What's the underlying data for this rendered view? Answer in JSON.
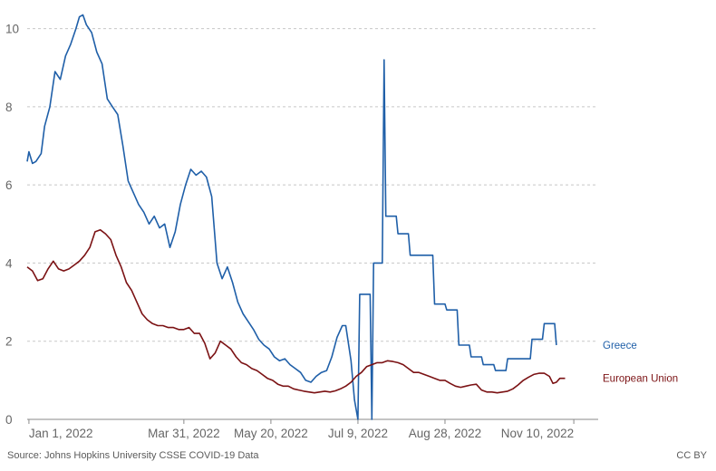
{
  "chart_data": {
    "type": "line",
    "title": "",
    "xlabel": "",
    "ylabel": "",
    "ylim": [
      0,
      10.5
    ],
    "y_ticks": [
      "0",
      "2",
      "4",
      "6",
      "8",
      "10"
    ],
    "x_ticks": [
      "Jan 1, 2022",
      "Mar 31, 2022",
      "May 20, 2022",
      "Jul 9, 2022",
      "Aug 28, 2022",
      "Nov 10, 2022"
    ],
    "x_tick_dates": [
      "2022-01-01",
      "2022-03-31",
      "2022-05-20",
      "2022-07-09",
      "2022-08-28",
      "2022-11-10"
    ],
    "xlim": [
      "2021-12-31",
      "2022-11-24"
    ],
    "grid": "horizontal dashed",
    "legend": "inline labels at line ends",
    "series": [
      {
        "name": "Greece",
        "color": "#1f5fa8",
        "points": [
          [
            "2021-12-31",
            6.6
          ],
          [
            "2022-01-01",
            6.85
          ],
          [
            "2022-01-03",
            6.55
          ],
          [
            "2022-01-05",
            6.6
          ],
          [
            "2022-01-08",
            6.8
          ],
          [
            "2022-01-10",
            7.5
          ],
          [
            "2022-01-13",
            8.0
          ],
          [
            "2022-01-16",
            8.9
          ],
          [
            "2022-01-19",
            8.7
          ],
          [
            "2022-01-22",
            9.3
          ],
          [
            "2022-01-25",
            9.6
          ],
          [
            "2022-01-28",
            10.0
          ],
          [
            "2022-01-30",
            10.3
          ],
          [
            "2022-02-01",
            10.35
          ],
          [
            "2022-02-03",
            10.1
          ],
          [
            "2022-02-06",
            9.9
          ],
          [
            "2022-02-09",
            9.4
          ],
          [
            "2022-02-12",
            9.1
          ],
          [
            "2022-02-15",
            8.2
          ],
          [
            "2022-02-18",
            8.0
          ],
          [
            "2022-02-21",
            7.8
          ],
          [
            "2022-02-24",
            7.0
          ],
          [
            "2022-02-27",
            6.1
          ],
          [
            "2022-03-02",
            5.8
          ],
          [
            "2022-03-05",
            5.5
          ],
          [
            "2022-03-08",
            5.3
          ],
          [
            "2022-03-11",
            5.0
          ],
          [
            "2022-03-14",
            5.2
          ],
          [
            "2022-03-17",
            4.9
          ],
          [
            "2022-03-20",
            5.0
          ],
          [
            "2022-03-23",
            4.4
          ],
          [
            "2022-03-26",
            4.8
          ],
          [
            "2022-03-29",
            5.5
          ],
          [
            "2022-04-01",
            6.0
          ],
          [
            "2022-04-04",
            6.4
          ],
          [
            "2022-04-07",
            6.25
          ],
          [
            "2022-04-10",
            6.35
          ],
          [
            "2022-04-13",
            6.2
          ],
          [
            "2022-04-16",
            5.7
          ],
          [
            "2022-04-19",
            4.0
          ],
          [
            "2022-04-22",
            3.6
          ],
          [
            "2022-04-25",
            3.9
          ],
          [
            "2022-04-28",
            3.5
          ],
          [
            "2022-05-01",
            3.0
          ],
          [
            "2022-05-04",
            2.7
          ],
          [
            "2022-05-07",
            2.5
          ],
          [
            "2022-05-10",
            2.3
          ],
          [
            "2022-05-13",
            2.05
          ],
          [
            "2022-05-16",
            1.9
          ],
          [
            "2022-05-19",
            1.8
          ],
          [
            "2022-05-22",
            1.6
          ],
          [
            "2022-05-25",
            1.5
          ],
          [
            "2022-05-28",
            1.55
          ],
          [
            "2022-05-31",
            1.4
          ],
          [
            "2022-06-03",
            1.3
          ],
          [
            "2022-06-06",
            1.2
          ],
          [
            "2022-06-09",
            1.0
          ],
          [
            "2022-06-12",
            0.95
          ],
          [
            "2022-06-15",
            1.1
          ],
          [
            "2022-06-18",
            1.2
          ],
          [
            "2022-06-21",
            1.25
          ],
          [
            "2022-06-24",
            1.6
          ],
          [
            "2022-06-27",
            2.1
          ],
          [
            "2022-06-30",
            2.4
          ],
          [
            "2022-07-02",
            2.4
          ],
          [
            "2022-07-05",
            1.5
          ],
          [
            "2022-07-07",
            0.5
          ],
          [
            "2022-07-09",
            0.0
          ],
          [
            "2022-07-10",
            3.2
          ],
          [
            "2022-07-16",
            3.2
          ],
          [
            "2022-07-17",
            0.0
          ],
          [
            "2022-07-18",
            4.0
          ],
          [
            "2022-07-23",
            4.0
          ],
          [
            "2022-07-24",
            9.2
          ],
          [
            "2022-07-25",
            5.2
          ],
          [
            "2022-07-31",
            5.2
          ],
          [
            "2022-08-01",
            4.75
          ],
          [
            "2022-08-07",
            4.75
          ],
          [
            "2022-08-08",
            4.2
          ],
          [
            "2022-08-21",
            4.2
          ],
          [
            "2022-08-22",
            2.95
          ],
          [
            "2022-08-28",
            2.95
          ],
          [
            "2022-08-29",
            2.8
          ],
          [
            "2022-09-04",
            2.8
          ],
          [
            "2022-09-05",
            1.9
          ],
          [
            "2022-09-11",
            1.9
          ],
          [
            "2022-09-12",
            1.6
          ],
          [
            "2022-09-18",
            1.6
          ],
          [
            "2022-09-19",
            1.4
          ],
          [
            "2022-09-25",
            1.4
          ],
          [
            "2022-09-26",
            1.25
          ],
          [
            "2022-10-02",
            1.25
          ],
          [
            "2022-10-03",
            1.55
          ],
          [
            "2022-10-16",
            1.55
          ],
          [
            "2022-10-17",
            2.05
          ],
          [
            "2022-10-23",
            2.05
          ],
          [
            "2022-10-24",
            2.45
          ],
          [
            "2022-10-30",
            2.45
          ],
          [
            "2022-10-31",
            1.9
          ]
        ]
      },
      {
        "name": "European Union",
        "color": "#7b1214",
        "points": [
          [
            "2021-12-31",
            3.9
          ],
          [
            "2022-01-03",
            3.8
          ],
          [
            "2022-01-06",
            3.55
          ],
          [
            "2022-01-09",
            3.6
          ],
          [
            "2022-01-12",
            3.85
          ],
          [
            "2022-01-15",
            4.05
          ],
          [
            "2022-01-18",
            3.85
          ],
          [
            "2022-01-21",
            3.8
          ],
          [
            "2022-01-24",
            3.85
          ],
          [
            "2022-01-27",
            3.95
          ],
          [
            "2022-01-30",
            4.05
          ],
          [
            "2022-02-02",
            4.2
          ],
          [
            "2022-02-05",
            4.4
          ],
          [
            "2022-02-08",
            4.8
          ],
          [
            "2022-02-11",
            4.85
          ],
          [
            "2022-02-14",
            4.75
          ],
          [
            "2022-02-17",
            4.6
          ],
          [
            "2022-02-20",
            4.2
          ],
          [
            "2022-02-23",
            3.9
          ],
          [
            "2022-02-26",
            3.5
          ],
          [
            "2022-03-01",
            3.3
          ],
          [
            "2022-03-04",
            3.0
          ],
          [
            "2022-03-07",
            2.7
          ],
          [
            "2022-03-10",
            2.55
          ],
          [
            "2022-03-13",
            2.45
          ],
          [
            "2022-03-16",
            2.4
          ],
          [
            "2022-03-19",
            2.4
          ],
          [
            "2022-03-22",
            2.35
          ],
          [
            "2022-03-25",
            2.35
          ],
          [
            "2022-03-28",
            2.3
          ],
          [
            "2022-03-31",
            2.3
          ],
          [
            "2022-04-03",
            2.35
          ],
          [
            "2022-04-06",
            2.2
          ],
          [
            "2022-04-09",
            2.2
          ],
          [
            "2022-04-12",
            1.95
          ],
          [
            "2022-04-15",
            1.55
          ],
          [
            "2022-04-18",
            1.7
          ],
          [
            "2022-04-21",
            2.0
          ],
          [
            "2022-04-24",
            1.9
          ],
          [
            "2022-04-27",
            1.8
          ],
          [
            "2022-04-30",
            1.6
          ],
          [
            "2022-05-03",
            1.45
          ],
          [
            "2022-05-06",
            1.4
          ],
          [
            "2022-05-09",
            1.3
          ],
          [
            "2022-05-12",
            1.25
          ],
          [
            "2022-05-15",
            1.15
          ],
          [
            "2022-05-18",
            1.05
          ],
          [
            "2022-05-21",
            1.0
          ],
          [
            "2022-05-24",
            0.9
          ],
          [
            "2022-05-27",
            0.85
          ],
          [
            "2022-05-30",
            0.85
          ],
          [
            "2022-06-02",
            0.78
          ],
          [
            "2022-06-05",
            0.75
          ],
          [
            "2022-06-08",
            0.72
          ],
          [
            "2022-06-11",
            0.7
          ],
          [
            "2022-06-14",
            0.68
          ],
          [
            "2022-06-17",
            0.7
          ],
          [
            "2022-06-20",
            0.72
          ],
          [
            "2022-06-23",
            0.7
          ],
          [
            "2022-06-26",
            0.73
          ],
          [
            "2022-06-29",
            0.78
          ],
          [
            "2022-07-02",
            0.85
          ],
          [
            "2022-07-05",
            0.95
          ],
          [
            "2022-07-08",
            1.1
          ],
          [
            "2022-07-11",
            1.2
          ],
          [
            "2022-07-14",
            1.35
          ],
          [
            "2022-07-17",
            1.4
          ],
          [
            "2022-07-20",
            1.45
          ],
          [
            "2022-07-23",
            1.45
          ],
          [
            "2022-07-26",
            1.5
          ],
          [
            "2022-07-29",
            1.48
          ],
          [
            "2022-08-01",
            1.45
          ],
          [
            "2022-08-04",
            1.4
          ],
          [
            "2022-08-07",
            1.3
          ],
          [
            "2022-08-10",
            1.2
          ],
          [
            "2022-08-13",
            1.2
          ],
          [
            "2022-08-16",
            1.15
          ],
          [
            "2022-08-19",
            1.1
          ],
          [
            "2022-08-22",
            1.05
          ],
          [
            "2022-08-25",
            1.0
          ],
          [
            "2022-08-28",
            1.0
          ],
          [
            "2022-08-31",
            0.92
          ],
          [
            "2022-09-03",
            0.85
          ],
          [
            "2022-09-06",
            0.82
          ],
          [
            "2022-09-09",
            0.85
          ],
          [
            "2022-09-12",
            0.88
          ],
          [
            "2022-09-15",
            0.9
          ],
          [
            "2022-09-18",
            0.75
          ],
          [
            "2022-09-21",
            0.7
          ],
          [
            "2022-09-24",
            0.7
          ],
          [
            "2022-09-27",
            0.68
          ],
          [
            "2022-09-30",
            0.7
          ],
          [
            "2022-10-03",
            0.72
          ],
          [
            "2022-10-06",
            0.78
          ],
          [
            "2022-10-09",
            0.88
          ],
          [
            "2022-10-12",
            1.0
          ],
          [
            "2022-10-15",
            1.08
          ],
          [
            "2022-10-18",
            1.15
          ],
          [
            "2022-10-21",
            1.18
          ],
          [
            "2022-10-24",
            1.18
          ],
          [
            "2022-10-27",
            1.1
          ],
          [
            "2022-10-29",
            0.92
          ],
          [
            "2022-10-31",
            0.95
          ],
          [
            "2022-11-02",
            1.05
          ],
          [
            "2022-11-05",
            1.05
          ]
        ]
      }
    ]
  },
  "footer": {
    "source": "Source: Johns Hopkins University CSSE COVID-19 Data",
    "license": "CC BY"
  }
}
